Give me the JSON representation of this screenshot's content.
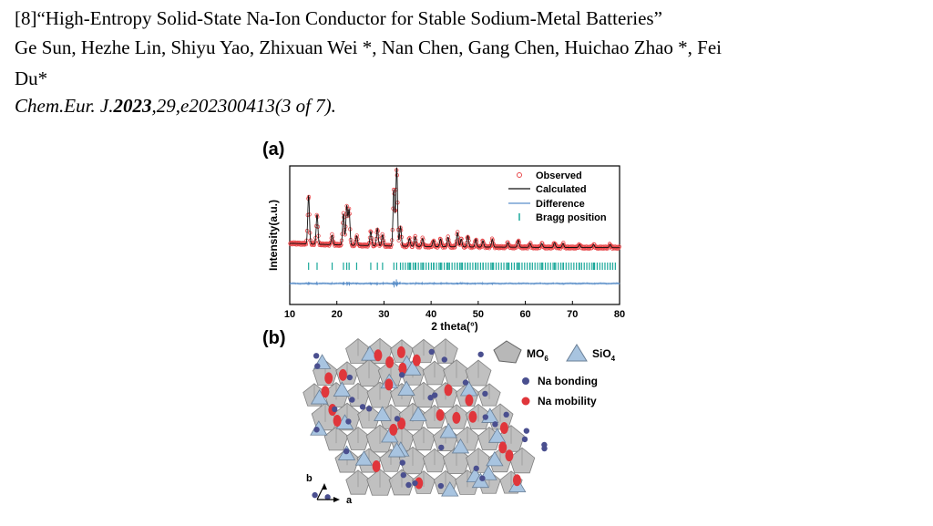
{
  "citation": {
    "title_line": "[8]“High-Entropy Solid-State Na-Ion Conductor for Stable Sodium-Metal Batteries”",
    "authors_line1": "Ge Sun, Hezhe Lin, Shiyu Yao, Zhixuan Wei *, Nan Chen, Gang Chen, Huichao Zhao *, Fei",
    "authors_line2": "Du*",
    "journal": "Chem.Eur. J.",
    "year": "2023",
    "volume_pages": ",29,e202300413(3 of 7)."
  },
  "figure": {
    "panel_a_label": "(a)",
    "panel_b_label": "(b)",
    "legend_b": {
      "mo6": "MO",
      "mo6_sub": "6",
      "sio4": "SiO",
      "sio4_sub": "4",
      "na_bonding": "Na bonding",
      "na_mobility": "Na mobility"
    },
    "axes_b": {
      "b": "b",
      "a": "a"
    }
  },
  "chart_data": {
    "type": "line",
    "xlabel": "2 theta(°)",
    "ylabel": "Intensity(a.u.)",
    "xlim": [
      10,
      80
    ],
    "xticks": [
      10,
      20,
      30,
      40,
      50,
      60,
      70,
      80
    ],
    "legend": [
      "Observed",
      "Calculated",
      "Difference",
      "Bragg position"
    ],
    "legend_position": "top-right",
    "colors": {
      "observed": "#e8474a",
      "calculated": "#111111",
      "difference": "#5b8fc9",
      "bragg": "#1aa89a"
    },
    "peaks": [
      {
        "x": 14.0,
        "y": 0.62
      },
      {
        "x": 15.8,
        "y": 0.38
      },
      {
        "x": 19.0,
        "y": 0.12
      },
      {
        "x": 21.4,
        "y": 0.4
      },
      {
        "x": 22.1,
        "y": 0.5
      },
      {
        "x": 22.6,
        "y": 0.45
      },
      {
        "x": 24.2,
        "y": 0.12
      },
      {
        "x": 27.2,
        "y": 0.18
      },
      {
        "x": 28.6,
        "y": 0.22
      },
      {
        "x": 29.7,
        "y": 0.14
      },
      {
        "x": 32.1,
        "y": 0.72
      },
      {
        "x": 32.7,
        "y": 1.0
      },
      {
        "x": 33.5,
        "y": 0.25
      },
      {
        "x": 35.4,
        "y": 0.1
      },
      {
        "x": 36.6,
        "y": 0.12
      },
      {
        "x": 38.2,
        "y": 0.1
      },
      {
        "x": 40.5,
        "y": 0.08
      },
      {
        "x": 42.0,
        "y": 0.1
      },
      {
        "x": 43.6,
        "y": 0.12
      },
      {
        "x": 45.6,
        "y": 0.18
      },
      {
        "x": 46.4,
        "y": 0.1
      },
      {
        "x": 47.8,
        "y": 0.14
      },
      {
        "x": 49.5,
        "y": 0.1
      },
      {
        "x": 51.0,
        "y": 0.08
      },
      {
        "x": 53.0,
        "y": 0.1
      },
      {
        "x": 56.3,
        "y": 0.06
      },
      {
        "x": 58.5,
        "y": 0.09
      },
      {
        "x": 61.0,
        "y": 0.05
      },
      {
        "x": 63.5,
        "y": 0.05
      },
      {
        "x": 66.2,
        "y": 0.06
      },
      {
        "x": 68.0,
        "y": 0.05
      },
      {
        "x": 71.5,
        "y": 0.04
      },
      {
        "x": 74.5,
        "y": 0.04
      },
      {
        "x": 78.0,
        "y": 0.04
      }
    ]
  }
}
